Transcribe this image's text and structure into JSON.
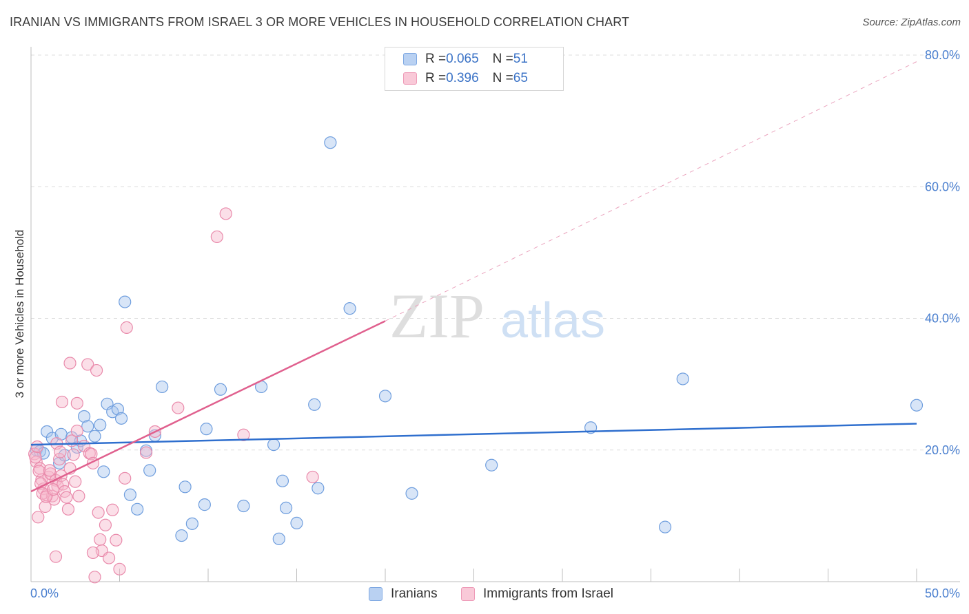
{
  "title": "IRANIAN VS IMMIGRANTS FROM ISRAEL 3 OR MORE VEHICLES IN HOUSEHOLD CORRELATION CHART",
  "source": "Source: ZipAtlas.com",
  "watermark": {
    "zip": "ZIP",
    "atlas": "atlas"
  },
  "colors": {
    "blue_fill": "#a9c6ee",
    "blue_stroke": "#6f9ede",
    "blue_line": "#2f6fce",
    "pink_fill": "#f6b8cc",
    "pink_stroke": "#e98aab",
    "pink_line": "#e0608e",
    "tick_text": "#4a7fcf",
    "grid": "#dcdcdc"
  },
  "legend": {
    "rows": [
      {
        "r_label": "R = ",
        "r_value": "0.065",
        "n_label": "N = ",
        "n_value": "51"
      },
      {
        "r_label": "R = ",
        "r_value": "0.396",
        "n_label": "N = ",
        "n_value": "65"
      }
    ]
  },
  "bottom_legend": {
    "series1": "Iranians",
    "series2": "Immigrants from Israel"
  },
  "chart_data": {
    "type": "scatter",
    "ylabel": "3 or more Vehicles in Household",
    "xlabel": "",
    "xlim": [
      0,
      50
    ],
    "ylim": [
      0,
      80
    ],
    "x_tick_labels": [
      {
        "value": 0,
        "label": "0.0%"
      },
      {
        "value": 50,
        "label": "50.0%"
      }
    ],
    "y_tick_labels": [
      {
        "value": 20,
        "label": "20.0%"
      },
      {
        "value": 40,
        "label": "40.0%"
      },
      {
        "value": 60,
        "label": "60.0%"
      },
      {
        "value": 80,
        "label": "80.0%"
      }
    ],
    "grid": "horizontal dashed",
    "legend_position": "top-center",
    "series": [
      {
        "name": "Iranians",
        "points": [
          [
            0.3,
            20.0
          ],
          [
            0.5,
            19.8
          ],
          [
            0.7,
            19.5
          ],
          [
            0.9,
            22.8
          ],
          [
            1.2,
            21.8
          ],
          [
            1.6,
            18.0
          ],
          [
            1.7,
            22.4
          ],
          [
            1.9,
            19.2
          ],
          [
            2.3,
            21.9
          ],
          [
            2.6,
            20.4
          ],
          [
            2.8,
            21.4
          ],
          [
            3.0,
            25.1
          ],
          [
            3.2,
            23.6
          ],
          [
            3.6,
            22.1
          ],
          [
            3.9,
            23.8
          ],
          [
            4.1,
            16.7
          ],
          [
            4.3,
            27.0
          ],
          [
            4.6,
            25.8
          ],
          [
            4.9,
            26.2
          ],
          [
            5.1,
            24.8
          ],
          [
            5.3,
            42.5
          ],
          [
            5.6,
            13.2
          ],
          [
            6.0,
            11.0
          ],
          [
            6.5,
            19.9
          ],
          [
            6.7,
            16.9
          ],
          [
            7.0,
            22.2
          ],
          [
            7.4,
            29.6
          ],
          [
            8.5,
            7.0
          ],
          [
            8.7,
            14.4
          ],
          [
            9.1,
            8.8
          ],
          [
            9.8,
            11.7
          ],
          [
            9.9,
            23.2
          ],
          [
            10.7,
            29.2
          ],
          [
            12.0,
            11.5
          ],
          [
            13.0,
            29.6
          ],
          [
            13.7,
            20.8
          ],
          [
            14.0,
            6.5
          ],
          [
            14.2,
            15.3
          ],
          [
            14.4,
            11.2
          ],
          [
            15.0,
            8.9
          ],
          [
            16.0,
            26.9
          ],
          [
            16.2,
            14.2
          ],
          [
            16.9,
            66.7
          ],
          [
            18.0,
            41.5
          ],
          [
            20.0,
            28.2
          ],
          [
            21.5,
            13.4
          ],
          [
            26.0,
            17.7
          ],
          [
            31.6,
            23.4
          ],
          [
            35.8,
            8.3
          ],
          [
            36.8,
            30.8
          ],
          [
            50.0,
            26.8
          ]
        ],
        "trend": [
          [
            0,
            20.8
          ],
          [
            50,
            24.0
          ]
        ]
      },
      {
        "name": "Immigrants from Israel",
        "points": [
          [
            0.2,
            19.4
          ],
          [
            0.3,
            18.2
          ],
          [
            0.4,
            9.8
          ],
          [
            0.5,
            17.2
          ],
          [
            0.6,
            15.5
          ],
          [
            0.7,
            14.1
          ],
          [
            0.8,
            11.4
          ],
          [
            0.9,
            13.2
          ],
          [
            1.0,
            15.9
          ],
          [
            1.1,
            16.4
          ],
          [
            1.2,
            13.0
          ],
          [
            1.3,
            12.5
          ],
          [
            1.4,
            15.4
          ],
          [
            1.5,
            14.5
          ],
          [
            1.6,
            18.6
          ],
          [
            1.7,
            16.1
          ],
          [
            1.8,
            14.8
          ],
          [
            1.9,
            13.7
          ],
          [
            2.0,
            12.8
          ],
          [
            2.1,
            11.0
          ],
          [
            2.2,
            17.2
          ],
          [
            2.3,
            21.4
          ],
          [
            2.4,
            19.3
          ],
          [
            2.5,
            15.2
          ],
          [
            2.6,
            22.9
          ],
          [
            2.7,
            13.0
          ],
          [
            1.75,
            27.3
          ],
          [
            2.2,
            33.2
          ],
          [
            2.6,
            27.1
          ],
          [
            3.0,
            20.6
          ],
          [
            3.2,
            33.0
          ],
          [
            3.3,
            19.5
          ],
          [
            3.4,
            19.4
          ],
          [
            3.5,
            18.0
          ],
          [
            3.7,
            32.1
          ],
          [
            3.8,
            10.5
          ],
          [
            3.9,
            6.4
          ],
          [
            4.0,
            4.7
          ],
          [
            4.2,
            8.6
          ],
          [
            4.4,
            3.6
          ],
          [
            4.6,
            10.9
          ],
          [
            4.8,
            6.3
          ],
          [
            5.0,
            1.9
          ],
          [
            5.3,
            15.7
          ],
          [
            5.4,
            38.6
          ],
          [
            6.5,
            19.6
          ],
          [
            7.0,
            22.8
          ],
          [
            8.3,
            26.4
          ],
          [
            10.5,
            52.4
          ],
          [
            11.0,
            55.9
          ],
          [
            12.0,
            22.3
          ],
          [
            15.9,
            15.9
          ],
          [
            1.4,
            3.8
          ],
          [
            3.5,
            4.4
          ],
          [
            3.6,
            0.7
          ],
          [
            0.25,
            18.9
          ],
          [
            0.35,
            20.5
          ],
          [
            0.45,
            16.8
          ],
          [
            0.55,
            14.9
          ],
          [
            0.65,
            13.4
          ],
          [
            0.85,
            12.9
          ],
          [
            1.05,
            16.9
          ],
          [
            1.25,
            14.0
          ],
          [
            1.45,
            21.0
          ],
          [
            1.65,
            19.7
          ]
        ],
        "trend": [
          [
            0,
            13.7
          ],
          [
            20,
            39.6
          ]
        ],
        "trend_extension": [
          [
            20,
            39.6
          ],
          [
            50,
            79.0
          ]
        ]
      }
    ]
  }
}
